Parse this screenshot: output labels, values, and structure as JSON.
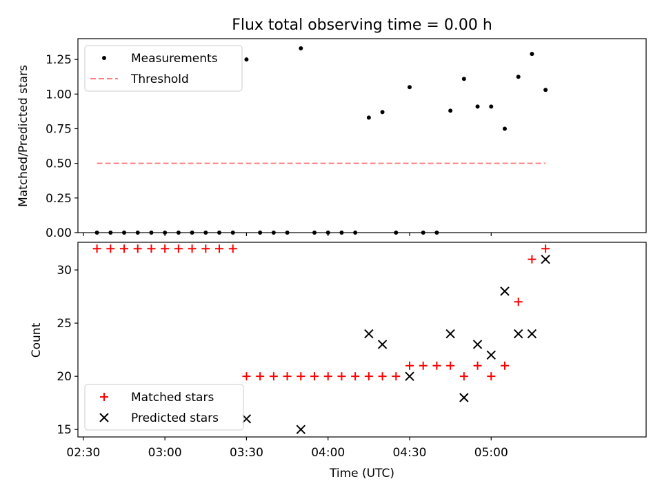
{
  "chart_data": [
    {
      "type": "scatter",
      "title": "Flux total observing time = 0.00 h",
      "xlabel": "",
      "ylabel": "Matched/Predicted stars",
      "ylim": [
        0,
        1.4
      ],
      "xlim": [
        "02:28",
        "05:57"
      ],
      "yticks": [
        "0.00",
        "0.25",
        "0.50",
        "0.75",
        "1.00",
        "1.25"
      ],
      "yticks_values": [
        0,
        0.25,
        0.5,
        0.75,
        1.0,
        1.25
      ],
      "legend": {
        "placement": "top-left",
        "entries": [
          "Measurements",
          "Threshold"
        ]
      },
      "series": [
        {
          "name": "Measurements",
          "color": "#000000",
          "marker": "dot",
          "points": [
            [
              "02:35",
              0
            ],
            [
              "02:40",
              0
            ],
            [
              "02:45",
              0
            ],
            [
              "02:50",
              0
            ],
            [
              "02:55",
              0
            ],
            [
              "03:00",
              0
            ],
            [
              "03:05",
              0
            ],
            [
              "03:10",
              0
            ],
            [
              "03:15",
              0
            ],
            [
              "03:20",
              0
            ],
            [
              "03:25",
              0
            ],
            [
              "03:30",
              1.25
            ],
            [
              "03:35",
              0
            ],
            [
              "03:40",
              0
            ],
            [
              "03:45",
              0
            ],
            [
              "03:50",
              1.33
            ],
            [
              "03:55",
              0
            ],
            [
              "04:00",
              0
            ],
            [
              "04:05",
              0
            ],
            [
              "04:10",
              0
            ],
            [
              "04:15",
              0.83
            ],
            [
              "04:20",
              0.87
            ],
            [
              "04:25",
              0
            ],
            [
              "04:30",
              1.05
            ],
            [
              "04:35",
              0
            ],
            [
              "04:40",
              0
            ],
            [
              "04:45",
              0.88
            ],
            [
              "04:50",
              1.11
            ],
            [
              "04:55",
              0.91
            ],
            [
              "05:00",
              0.91
            ],
            [
              "05:05",
              0.75
            ],
            [
              "05:10",
              1.125
            ],
            [
              "05:15",
              1.29
            ],
            [
              "05:20",
              1.03
            ]
          ]
        },
        {
          "name": "Threshold",
          "color": "#ff7f7f",
          "line": "dashed",
          "points": [
            [
              "02:35",
              0.5
            ],
            [
              "05:20",
              0.5
            ]
          ]
        }
      ]
    },
    {
      "type": "scatter",
      "title": "",
      "xlabel": "Time (UTC)",
      "ylabel": "Count",
      "ylim": [
        14.3,
        32.6
      ],
      "xlim": [
        "02:28",
        "05:57"
      ],
      "yticks": [
        "15",
        "20",
        "25",
        "30"
      ],
      "yticks_values": [
        15,
        20,
        25,
        30
      ],
      "xticks": [
        "02:30",
        "03:00",
        "03:30",
        "04:00",
        "04:30",
        "05:00"
      ],
      "xticks_values": [
        "02:30",
        "03:00",
        "03:30",
        "04:00",
        "04:30",
        "05:00"
      ],
      "legend": {
        "placement": "bottom-left",
        "entries": [
          "Matched stars",
          "Predicted stars"
        ]
      },
      "series": [
        {
          "name": "Matched stars",
          "color": "#ff0000",
          "marker": "plus",
          "points": [
            [
              "02:35",
              32
            ],
            [
              "02:40",
              32
            ],
            [
              "02:45",
              32
            ],
            [
              "02:50",
              32
            ],
            [
              "02:55",
              32
            ],
            [
              "03:00",
              32
            ],
            [
              "03:05",
              32
            ],
            [
              "03:10",
              32
            ],
            [
              "03:15",
              32
            ],
            [
              "03:20",
              32
            ],
            [
              "03:25",
              32
            ],
            [
              "03:30",
              20
            ],
            [
              "03:35",
              20
            ],
            [
              "03:40",
              20
            ],
            [
              "03:45",
              20
            ],
            [
              "03:50",
              20
            ],
            [
              "03:55",
              20
            ],
            [
              "04:00",
              20
            ],
            [
              "04:05",
              20
            ],
            [
              "04:10",
              20
            ],
            [
              "04:15",
              20
            ],
            [
              "04:20",
              20
            ],
            [
              "04:25",
              20
            ],
            [
              "04:30",
              21
            ],
            [
              "04:35",
              21
            ],
            [
              "04:40",
              21
            ],
            [
              "04:45",
              21
            ],
            [
              "04:50",
              20
            ],
            [
              "04:55",
              21
            ],
            [
              "05:00",
              20
            ],
            [
              "05:05",
              21
            ],
            [
              "05:10",
              27
            ],
            [
              "05:15",
              31
            ],
            [
              "05:20",
              32
            ]
          ]
        },
        {
          "name": "Predicted stars",
          "color": "#000000",
          "marker": "x",
          "points": [
            [
              "03:30",
              16
            ],
            [
              "03:50",
              15
            ],
            [
              "04:15",
              24
            ],
            [
              "04:20",
              23
            ],
            [
              "04:30",
              20
            ],
            [
              "04:45",
              24
            ],
            [
              "04:50",
              18
            ],
            [
              "04:55",
              23
            ],
            [
              "05:00",
              22
            ],
            [
              "05:05",
              28
            ],
            [
              "05:10",
              24
            ],
            [
              "05:15",
              24
            ],
            [
              "05:20",
              31
            ]
          ]
        }
      ]
    }
  ]
}
